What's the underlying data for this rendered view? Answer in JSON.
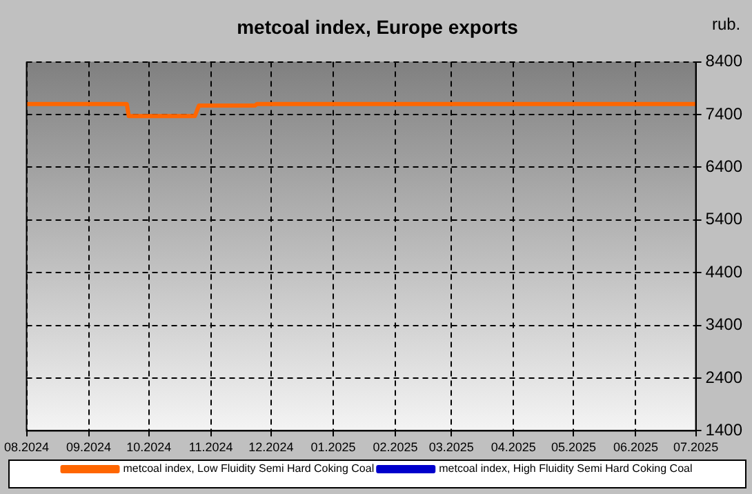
{
  "chart_data": {
    "type": "line",
    "title": "metcoal index, Europe exports",
    "ylabel": "rub.",
    "x": [
      "2024-08-01",
      "2024-09-20",
      "2024-09-21",
      "2024-10-24",
      "2024-10-26",
      "2024-11-23",
      "2024-11-24",
      "2025-07-01"
    ],
    "series": [
      {
        "name": "metcoal index, Low Fluidity Semi Hard Coking Coal",
        "color": "#ff6600",
        "values": [
          7600,
          7600,
          7370,
          7370,
          7570,
          7570,
          7600,
          7600
        ]
      },
      {
        "name": "metcoal index, High Fluidity Semi Hard Coking Coal",
        "color": "#0000cc",
        "values": [
          null,
          null,
          null,
          null,
          null,
          null,
          null,
          null
        ]
      }
    ],
    "xlim": [
      "2024-08-01",
      "2025-07-01"
    ],
    "xticks": [
      {
        "value": "2024-08-01",
        "label": "08.2024"
      },
      {
        "value": "2024-09-01",
        "label": "09.2024"
      },
      {
        "value": "2024-10-01",
        "label": "10.2024"
      },
      {
        "value": "2024-11-01",
        "label": "11.2024"
      },
      {
        "value": "2024-12-01",
        "label": "12.2024"
      },
      {
        "value": "2025-01-01",
        "label": "01.2025"
      },
      {
        "value": "2025-02-01",
        "label": "02.2025"
      },
      {
        "value": "2025-03-01",
        "label": "03.2025"
      },
      {
        "value": "2025-04-01",
        "label": "04.2025"
      },
      {
        "value": "2025-05-01",
        "label": "05.2025"
      },
      {
        "value": "2025-06-01",
        "label": "06.2025"
      },
      {
        "value": "2025-07-01",
        "label": "07.2025"
      }
    ],
    "ylim": [
      1400,
      8400
    ],
    "yticks": [
      1400,
      2400,
      3400,
      4400,
      5400,
      6400,
      7400,
      8400
    ],
    "grid": true,
    "legend": "bottom",
    "line_style": "solid",
    "marker": "none"
  }
}
